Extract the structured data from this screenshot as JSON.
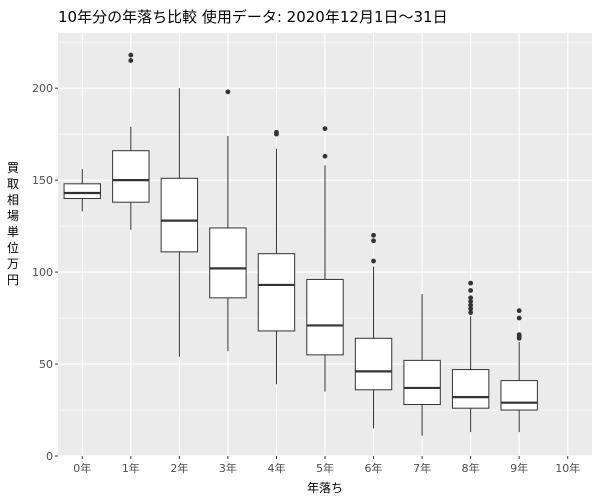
{
  "chart_data": {
    "type": "boxplot",
    "title": "10年分の年落ち比較 使用データ: 2020年12月1日～31日",
    "xlabel": "年落ち",
    "ylabel": "買取相場　単位　万円",
    "ylim": [
      0,
      230
    ],
    "yticks": [
      0,
      50,
      100,
      150,
      200
    ],
    "grid": true,
    "categories": [
      "0年",
      "1年",
      "2年",
      "3年",
      "4年",
      "5年",
      "6年",
      "7年",
      "8年",
      "9年",
      "10年"
    ],
    "boxes": [
      {
        "category": "0年",
        "min": 133,
        "q1": 140,
        "median": 143,
        "q3": 148,
        "max": 156,
        "outliers": []
      },
      {
        "category": "1年",
        "min": 123,
        "q1": 138,
        "median": 150,
        "q3": 166,
        "max": 179,
        "outliers": [
          215,
          218
        ]
      },
      {
        "category": "2年",
        "min": 54,
        "q1": 111,
        "median": 128,
        "q3": 151,
        "max": 200,
        "outliers": []
      },
      {
        "category": "3年",
        "min": 57,
        "q1": 86,
        "median": 102,
        "q3": 124,
        "max": 174,
        "outliers": [
          198
        ]
      },
      {
        "category": "4年",
        "min": 39,
        "q1": 68,
        "median": 93,
        "q3": 110,
        "max": 167,
        "outliers": [
          175,
          176
        ]
      },
      {
        "category": "5年",
        "min": 35,
        "q1": 55,
        "median": 71,
        "q3": 96,
        "max": 158,
        "outliers": [
          163,
          178
        ]
      },
      {
        "category": "6年",
        "min": 15,
        "q1": 36,
        "median": 46,
        "q3": 64,
        "max": 103,
        "outliers": [
          106,
          117,
          120
        ]
      },
      {
        "category": "7年",
        "min": 11,
        "q1": 28,
        "median": 37,
        "q3": 52,
        "max": 88,
        "outliers": []
      },
      {
        "category": "8年",
        "min": 13,
        "q1": 26,
        "median": 32,
        "q3": 47,
        "max": 76,
        "outliers": [
          78,
          80,
          82,
          84,
          86,
          90,
          94
        ]
      },
      {
        "category": "9年",
        "min": 13,
        "q1": 25,
        "median": 29,
        "q3": 41,
        "max": 62,
        "outliers": [
          64,
          65,
          66,
          75,
          79
        ]
      },
      {
        "category": "10年",
        "min": null,
        "q1": null,
        "median": null,
        "q3": null,
        "max": null,
        "outliers": []
      }
    ],
    "colors": {
      "panel": "#ebebeb",
      "grid_major": "#ffffff",
      "box_fill": "#ffffff",
      "box_line": "#333333",
      "point": "#333333"
    }
  }
}
